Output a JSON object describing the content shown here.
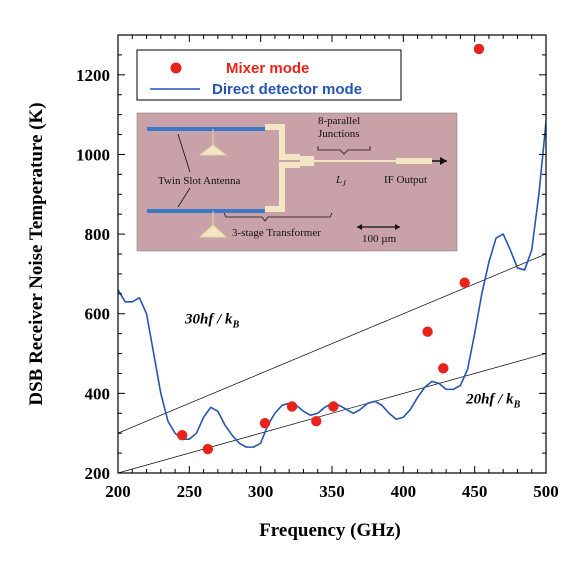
{
  "chart_data": {
    "type": "scatter",
    "xlabel": "Frequency (GHz)",
    "ylabel": "DSB Receiver Noise Temperature (K)",
    "xlim": [
      200,
      500
    ],
    "ylim": [
      200,
      1300
    ],
    "xticks": [
      "200",
      "250",
      "300",
      "350",
      "400",
      "450",
      "500"
    ],
    "yticks": [
      "200",
      "400",
      "600",
      "800",
      "1000",
      "1200"
    ],
    "xtick_values": [
      200,
      250,
      300,
      350,
      400,
      450,
      500
    ],
    "ytick_values": [
      200,
      400,
      600,
      800,
      1000,
      1200
    ],
    "grid": false,
    "legend_position": "top-left",
    "series": [
      {
        "name": "Mixer mode",
        "kind": "scatter",
        "color": "#e8231c",
        "x": [
          245,
          263,
          303,
          322,
          339,
          351,
          417,
          428,
          443,
          453
        ],
        "y": [
          295,
          260,
          325,
          367,
          330,
          367,
          555,
          463,
          678,
          1265
        ]
      },
      {
        "name": "Direct detector mode",
        "kind": "line",
        "color": "#2455b0",
        "x": [
          200,
          205,
          210,
          215,
          220,
          225,
          230,
          235,
          240,
          245,
          250,
          255,
          260,
          265,
          270,
          275,
          280,
          285,
          290,
          295,
          300,
          305,
          310,
          315,
          320,
          325,
          330,
          335,
          340,
          345,
          350,
          355,
          360,
          365,
          370,
          375,
          380,
          385,
          390,
          395,
          400,
          405,
          410,
          415,
          420,
          425,
          430,
          435,
          440,
          445,
          450,
          455,
          460,
          465,
          470,
          475,
          480,
          485,
          490,
          495,
          500
        ],
        "y": [
          660,
          630,
          630,
          640,
          600,
          500,
          400,
          330,
          300,
          285,
          285,
          300,
          340,
          365,
          355,
          320,
          295,
          275,
          265,
          265,
          275,
          320,
          350,
          370,
          375,
          370,
          355,
          345,
          350,
          365,
          375,
          370,
          360,
          350,
          360,
          375,
          380,
          370,
          350,
          335,
          340,
          360,
          390,
          415,
          430,
          425,
          410,
          410,
          420,
          460,
          550,
          650,
          730,
          790,
          800,
          760,
          715,
          710,
          760,
          900,
          1080
        ]
      },
      {
        "name": "30hf/kB",
        "kind": "reference-line",
        "color": "#000000",
        "x": [
          200,
          500
        ],
        "y": [
          300,
          750
        ]
      },
      {
        "name": "20hf/kB",
        "kind": "reference-line",
        "color": "#000000",
        "x": [
          200,
          500
        ],
        "y": [
          200,
          500
        ]
      }
    ],
    "annotations": [
      {
        "text_main": "30hf / k",
        "text_sub": "B",
        "at": [
          247,
          575
        ]
      },
      {
        "text_main": "20hf / k",
        "text_sub": "B",
        "at": [
          444,
          375
        ]
      }
    ]
  },
  "legend": {
    "mixer_label": "Mixer mode",
    "detector_label": "Direct detector mode",
    "mixer_color": "#e8231c",
    "detector_color": "#2455b0"
  },
  "inset": {
    "twin_slot": "Twin Slot Antenna",
    "parallel": "8-parallel",
    "junctions": "Junctions",
    "lj": "L",
    "lj_sub": "J",
    "if_output": "IF Output",
    "transformer": "3-stage Transformer",
    "scale": "100 µm",
    "bg_color": "#c8a2a8"
  }
}
